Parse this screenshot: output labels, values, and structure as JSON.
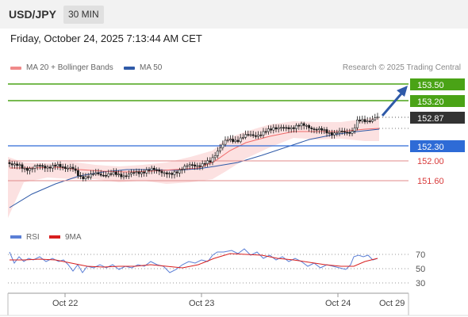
{
  "header": {
    "symbol": "USD/JPY",
    "timeframe": "30 MIN"
  },
  "datetime": "Friday, October 24, 2025 7:13:44 AM CET",
  "legend": {
    "ma20": {
      "label": "MA 20 + Bollinger Bands",
      "color": "#f08a8a"
    },
    "ma50": {
      "label": "MA 50",
      "color": "#2f5aa8"
    }
  },
  "credit": "Research © 2025 Trading Central",
  "levels": [
    {
      "value": "153.50",
      "kind": "resistance",
      "color": "#4aa316"
    },
    {
      "value": "153.20",
      "kind": "resistance",
      "color": "#4aa316"
    },
    {
      "value": "152.87",
      "kind": "current",
      "color": "#333333"
    },
    {
      "value": "152.30",
      "kind": "pivot",
      "color": "#2e6bd6"
    },
    {
      "value": "152.00",
      "kind": "support",
      "color": "#d83a3a"
    },
    {
      "value": "151.60",
      "kind": "support",
      "color": "#d83a3a"
    }
  ],
  "rsi_legend": {
    "rsi": {
      "label": "RSI",
      "color": "#5b7fd6"
    },
    "ma9": {
      "label": "9MA",
      "color": "#d81f1f"
    }
  },
  "rsi_ticks": [
    "70",
    "50",
    "30"
  ],
  "x_ticks": [
    "Oct 22",
    "Oct 23",
    "Oct 24",
    "Oct 29"
  ],
  "chart_data": {
    "type": "line",
    "series": [
      {
        "name": "MA 20 + Bollinger Bands",
        "values": [
          151.96,
          151.97,
          151.98,
          151.99,
          152.0,
          152.1,
          152.28,
          152.42,
          152.51,
          152.58,
          152.65,
          152.72
        ]
      },
      {
        "name": "MA 50",
        "values": [
          151.5,
          151.68,
          151.82,
          151.92,
          151.98,
          152.03,
          152.1,
          152.2,
          152.35,
          152.5,
          152.62,
          152.68
        ]
      }
    ],
    "x": [
      "Oct 22",
      "",
      "",
      "",
      "Oct 23",
      "",
      "",
      "",
      "Oct 24",
      "",
      "",
      "Oct 29"
    ],
    "ylim": [
      151.3,
      153.6
    ]
  }
}
